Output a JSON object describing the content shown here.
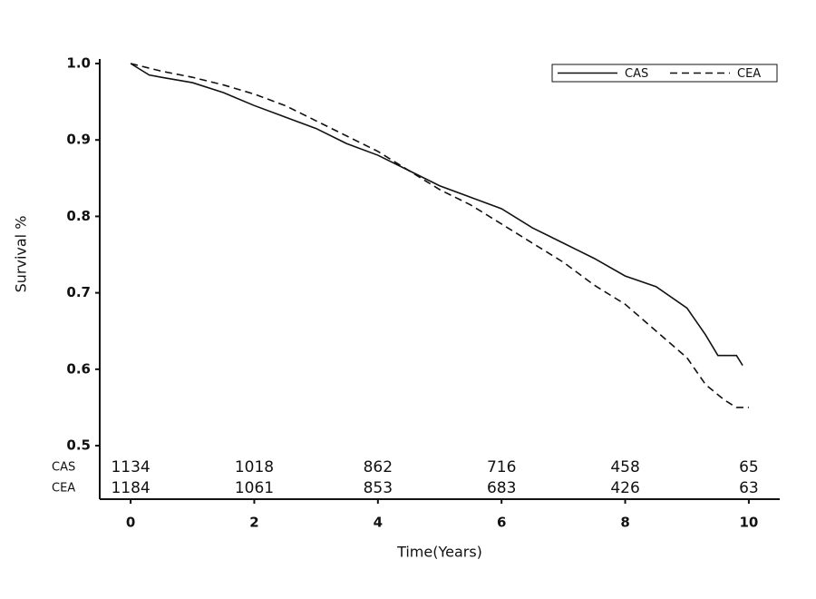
{
  "chart_data": {
    "type": "line",
    "xlabel": "Time(Years)",
    "ylabel": "Survival %",
    "xlim": [
      -0.5,
      10.5
    ],
    "ylim": [
      0.43,
      1.0
    ],
    "xticks": [
      0,
      2,
      4,
      6,
      8,
      10
    ],
    "yticks": [
      0.5,
      0.6,
      0.7,
      0.8,
      0.9,
      {
        "value": 1,
        "label": "1.0"
      }
    ],
    "legend": "top-right",
    "series": [
      {
        "name": "CAS",
        "color": "#111111",
        "line_style": "solid",
        "x": [
          0,
          0.3,
          0.5,
          1,
          1.5,
          2,
          2.5,
          3,
          3.5,
          4,
          4.5,
          5,
          5.5,
          6,
          6.5,
          7,
          7.5,
          8,
          8.5,
          9,
          9.3,
          9.5,
          9.8,
          9.9
        ],
        "values": [
          1.0,
          0.985,
          0.982,
          0.975,
          0.962,
          0.945,
          0.93,
          0.915,
          0.895,
          0.88,
          0.86,
          0.84,
          0.825,
          0.81,
          0.785,
          0.765,
          0.745,
          0.722,
          0.708,
          0.68,
          0.645,
          0.618,
          0.618,
          0.605
        ]
      },
      {
        "name": "CEA",
        "color": "#111111",
        "line_style": "dashed",
        "x": [
          0,
          0.5,
          1,
          1.5,
          2,
          2.5,
          3,
          3.5,
          4,
          4.5,
          5,
          5.5,
          6,
          6.5,
          7,
          7.5,
          8,
          8.5,
          9,
          9.3,
          9.6,
          9.8,
          10
        ],
        "values": [
          1.0,
          0.99,
          0.982,
          0.972,
          0.96,
          0.945,
          0.925,
          0.905,
          0.885,
          0.86,
          0.835,
          0.815,
          0.79,
          0.765,
          0.74,
          0.71,
          0.685,
          0.65,
          0.615,
          0.58,
          0.56,
          0.55,
          0.55
        ]
      }
    ],
    "at_risk": {
      "labels": [
        "CAS",
        "CEA"
      ],
      "values": [
        [
          1134,
          1018,
          862,
          716,
          458,
          65
        ],
        [
          1184,
          1061,
          853,
          683,
          426,
          63
        ]
      ]
    }
  }
}
